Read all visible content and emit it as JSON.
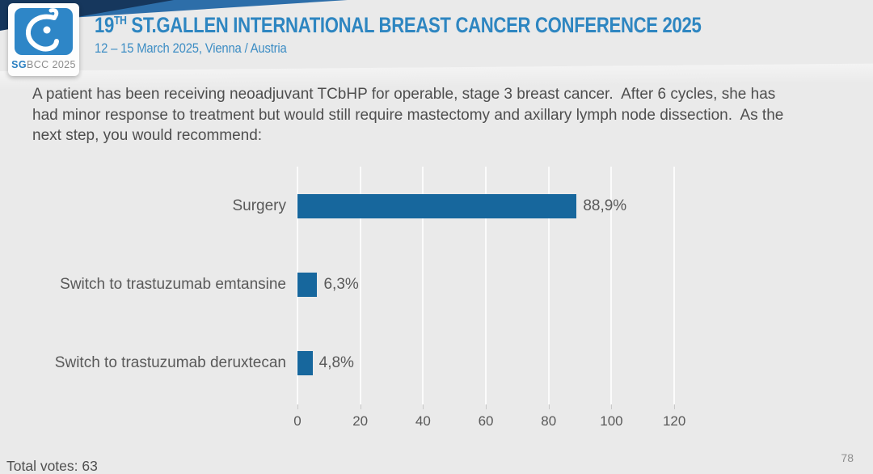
{
  "header": {
    "logo_bold": "SG",
    "logo_rest": "BCC 2025",
    "title_number": "19",
    "title_ordinal": "TH",
    "title_rest": " ST.GALLEN INTERNATIONAL BREAST CANCER CONFERENCE 2025",
    "subtitle": "12 – 15 March 2025, Vienna / Austria"
  },
  "question": "A patient has been receiving neoadjuvant TCbHP for operable, stage 3 breast cancer.  After 6 cycles, she has had minor response to treatment but would still require mastectomy and axillary lymph node dissection.  As the next step, you would recommend:",
  "chart_data": {
    "type": "bar",
    "orientation": "horizontal",
    "title": "",
    "xlabel": "",
    "ylabel": "",
    "categories": [
      "Surgery",
      "Switch to trastuzumab emtansine",
      "Switch to trastuzumab deruxtecan"
    ],
    "values": [
      88.9,
      6.3,
      4.8
    ],
    "value_labels": [
      "88,9%",
      "6,3%",
      "4,8%"
    ],
    "xlim": [
      0,
      120
    ],
    "x_ticks": [
      0,
      20,
      40,
      60,
      80,
      100,
      120
    ],
    "grid": true,
    "legend": false,
    "bar_color": "#17679d"
  },
  "footer": {
    "total_votes": "Total votes: 63",
    "page_number": "78"
  },
  "colors": {
    "accent_blue": "#2e86c1",
    "banner_navy": "#16375d",
    "banner_blue": "#2d6ea9",
    "bar_blue": "#17679d",
    "text_gray": "#595959",
    "background": "#eaeaea"
  }
}
